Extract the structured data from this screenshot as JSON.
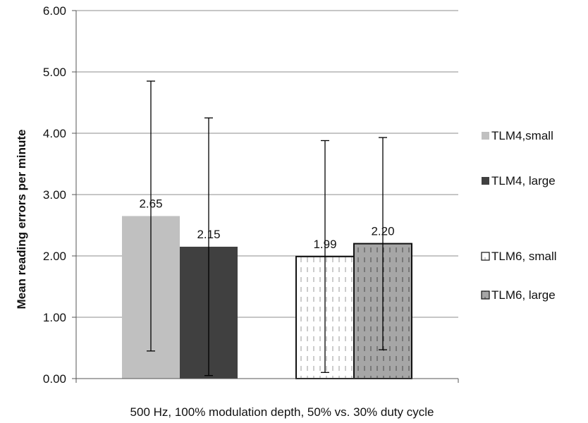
{
  "chart_data": {
    "type": "bar",
    "title": "",
    "xlabel": "500 Hz, 100% modulation  depth,  50% vs. 30% duty cycle",
    "ylabel": "Mean reading errors per minute",
    "ylim": [
      0,
      6
    ],
    "yticks": [
      "0.00",
      "1.00",
      "2.00",
      "3.00",
      "4.00",
      "5.00",
      "6.00"
    ],
    "grid": true,
    "legend_position": "right",
    "series": [
      {
        "name": "TLM4,small",
        "value": 2.65,
        "label": "2.65",
        "err_low": 0.45,
        "err_high": 4.85,
        "color": "#c0c0c0",
        "pattern": "solid"
      },
      {
        "name": "TLM4, large",
        "value": 2.15,
        "label": "2.15",
        "err_low": 0.05,
        "err_high": 4.25,
        "color": "#404040",
        "pattern": "solid"
      },
      {
        "name": "TLM6, small",
        "value": 1.99,
        "label": "1.99",
        "err_low": 0.1,
        "err_high": 3.88,
        "color": "#ffffff",
        "pattern": "dashed-light"
      },
      {
        "name": "TLM6, large",
        "value": 2.2,
        "label": "2.20",
        "err_low": 0.47,
        "err_high": 3.93,
        "color": "#a6a6a6",
        "pattern": "dashed-dark"
      }
    ]
  }
}
